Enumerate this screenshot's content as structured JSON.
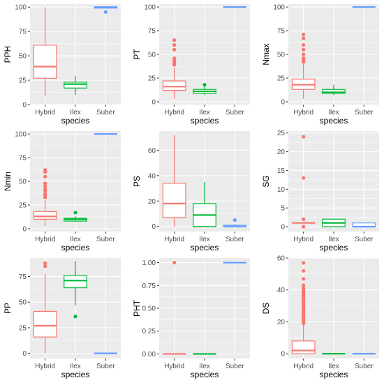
{
  "colors": {
    "panel_bg": "#EBEBEB",
    "grid": "#FFFFFF",
    "tick_text": "#4D4D4D",
    "label_text": "#000000",
    "Hybrid": "#F8766D",
    "Ilex": "#00BA38",
    "Suber": "#619CFF"
  },
  "chart_data": [
    {
      "type": "box",
      "ylabel": "PPH",
      "xlabel": "species",
      "categories": [
        "Hybrid",
        "Ilex",
        "Suber"
      ],
      "ylim": [
        0,
        103
      ],
      "yticks": [
        0,
        25,
        50,
        75,
        100
      ],
      "boxes": [
        {
          "q1": 27,
          "median": 39,
          "q3": 61,
          "low": 9,
          "high": 100,
          "outliers": []
        },
        {
          "q1": 17,
          "median": 21,
          "q3": 23,
          "low": 10,
          "high": 29,
          "outliers": []
        },
        {
          "q1": 99,
          "median": 100,
          "q3": 100,
          "low": 99,
          "high": 100,
          "outliers": [
            95
          ]
        }
      ]
    },
    {
      "type": "box",
      "ylabel": "PT",
      "xlabel": "species",
      "categories": [
        "Hybrid",
        "Ilex",
        "Suber"
      ],
      "ylim": [
        -3,
        103
      ],
      "yticks": [
        0,
        25,
        50,
        75,
        100
      ],
      "boxes": [
        {
          "q1": 12,
          "median": 16,
          "q3": 22,
          "low": 3,
          "high": 36,
          "outliers": [
            39,
            41,
            42,
            43,
            44,
            46,
            55,
            60,
            65
          ]
        },
        {
          "q1": 9,
          "median": 11,
          "q3": 13,
          "low": 7,
          "high": 16,
          "outliers": [
            18
          ]
        },
        {
          "q1": 100,
          "median": 100,
          "q3": 100,
          "low": 100,
          "high": 100,
          "outliers": []
        }
      ]
    },
    {
      "type": "box",
      "ylabel": "Nmax",
      "xlabel": "species",
      "categories": [
        "Hybrid",
        "Ilex",
        "Suber"
      ],
      "ylim": [
        -3,
        103
      ],
      "yticks": [
        0,
        25,
        50,
        75,
        100
      ],
      "boxes": [
        {
          "q1": 13,
          "median": 18,
          "q3": 24,
          "low": 3,
          "high": 40,
          "outliers": [
            42,
            44,
            46,
            50,
            55,
            60,
            67,
            71
          ]
        },
        {
          "q1": 9,
          "median": 10,
          "q3": 13,
          "low": 7,
          "high": 18,
          "outliers": []
        },
        {
          "q1": 100,
          "median": 100,
          "q3": 100,
          "low": 100,
          "high": 100,
          "outliers": []
        }
      ]
    },
    {
      "type": "box",
      "ylabel": "Nmin",
      "xlabel": "species",
      "categories": [
        "Hybrid",
        "Ilex",
        "Suber"
      ],
      "ylim": [
        -3,
        103
      ],
      "yticks": [
        0,
        25,
        50,
        75,
        100
      ],
      "boxes": [
        {
          "q1": 10,
          "median": 13,
          "q3": 18,
          "low": 3,
          "high": 30,
          "outliers": [
            33,
            35,
            37,
            40,
            42,
            45,
            48,
            55,
            60,
            62
          ]
        },
        {
          "q1": 8,
          "median": 10,
          "q3": 11,
          "low": 7,
          "high": 13,
          "outliers": [
            17
          ]
        },
        {
          "q1": 100,
          "median": 100,
          "q3": 100,
          "low": 100,
          "high": 100,
          "outliers": []
        }
      ]
    },
    {
      "type": "box",
      "ylabel": "PS",
      "xlabel": "species",
      "categories": [
        "Hybrid",
        "Ilex",
        "Suber"
      ],
      "ylim": [
        -4,
        75
      ],
      "yticks": [
        0,
        20,
        40,
        60
      ],
      "boxes": [
        {
          "q1": 7,
          "median": 18,
          "q3": 34,
          "low": 0,
          "high": 72,
          "outliers": []
        },
        {
          "q1": 0,
          "median": 9,
          "q3": 18,
          "low": 0,
          "high": 35,
          "outliers": []
        },
        {
          "q1": 0,
          "median": 0,
          "q3": 1,
          "low": 0,
          "high": 2,
          "outliers": [
            5
          ]
        }
      ]
    },
    {
      "type": "box",
      "ylabel": "SG",
      "xlabel": "species",
      "categories": [
        "Hybrid",
        "Ilex",
        "Suber"
      ],
      "ylim": [
        -1.3,
        25.5
      ],
      "yticks": [
        0,
        5,
        10,
        15,
        20,
        25
      ],
      "boxes": [
        {
          "q1": 1,
          "median": 1,
          "q3": 1,
          "low": 1,
          "high": 1,
          "outliers": [
            0,
            2,
            13,
            24
          ]
        },
        {
          "q1": 0,
          "median": 1,
          "q3": 2,
          "low": 0,
          "high": 2,
          "outliers": []
        },
        {
          "q1": 0,
          "median": 0,
          "q3": 1,
          "low": 0,
          "high": 1,
          "outliers": []
        }
      ]
    },
    {
      "type": "box",
      "ylabel": "PP",
      "xlabel": "species",
      "categories": [
        "Hybrid",
        "Ilex",
        "Suber"
      ],
      "ylim": [
        -5,
        93
      ],
      "yticks": [
        0,
        25,
        50,
        75
      ],
      "boxes": [
        {
          "q1": 16,
          "median": 27,
          "q3": 41,
          "low": 0,
          "high": 78,
          "outliers": [
            85,
            88
          ]
        },
        {
          "q1": 64,
          "median": 71,
          "q3": 76,
          "low": 47,
          "high": 90,
          "outliers": [
            36
          ]
        },
        {
          "q1": 0,
          "median": 0,
          "q3": 0,
          "low": 0,
          "high": 0,
          "outliers": []
        }
      ]
    },
    {
      "type": "box",
      "ylabel": "PHT",
      "xlabel": "species",
      "categories": [
        "Hybrid",
        "Ilex",
        "Suber"
      ],
      "ylim": [
        -0.05,
        1.05
      ],
      "yticks": [
        0,
        0.25,
        0.5,
        0.75,
        1
      ],
      "ytick_labels": [
        "0.00",
        "0.25",
        "0.50",
        "0.75",
        "1.00"
      ],
      "boxes": [
        {
          "q1": 0,
          "median": 0,
          "q3": 0,
          "low": 0,
          "high": 0,
          "outliers": [
            1
          ]
        },
        {
          "q1": 0,
          "median": 0,
          "q3": 0,
          "low": 0,
          "high": 0,
          "outliers": []
        },
        {
          "q1": 1,
          "median": 1,
          "q3": 1,
          "low": 1,
          "high": 1,
          "outliers": []
        }
      ]
    },
    {
      "type": "box",
      "ylabel": "DS",
      "xlabel": "species",
      "categories": [
        "Hybrid",
        "Ilex",
        "Suber"
      ],
      "ylim": [
        -3,
        60
      ],
      "yticks": [
        0,
        20,
        40,
        60
      ],
      "boxes": [
        {
          "q1": 0,
          "median": 2,
          "q3": 8,
          "low": 0,
          "high": 18,
          "outliers": [
            19,
            20,
            21,
            22,
            23,
            24,
            25,
            26,
            27,
            28,
            29,
            30,
            31,
            32,
            33,
            34,
            35,
            36,
            37,
            38,
            39,
            40,
            41,
            43,
            47,
            52,
            57
          ]
        },
        {
          "q1": 0,
          "median": 0,
          "q3": 0,
          "low": 0,
          "high": 0,
          "outliers": []
        },
        {
          "q1": 0,
          "median": 0,
          "q3": 0,
          "low": 0,
          "high": 0,
          "outliers": []
        }
      ]
    }
  ]
}
